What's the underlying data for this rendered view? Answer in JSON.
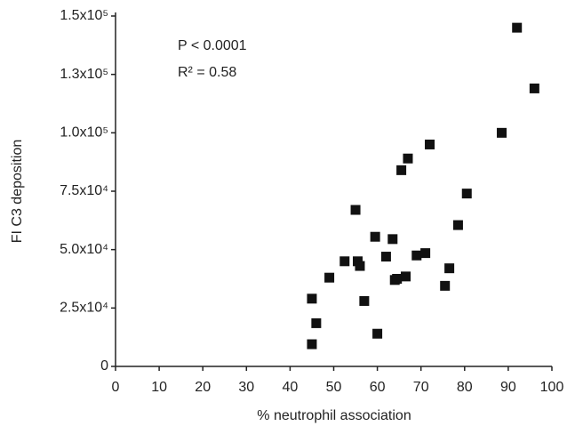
{
  "chart_data": {
    "type": "scatter",
    "x_label": "% neutrophil association",
    "y_label": "FI C3 deposition",
    "annotations": [
      "P < 0.0001",
      "R² = 0.58"
    ],
    "color": "#111111",
    "x": [
      45,
      45,
      46,
      49,
      52.5,
      55.5,
      56,
      55,
      57,
      59.5,
      60,
      62,
      63.5,
      64,
      64.5,
      66.5,
      65.5,
      67,
      69,
      71,
      72,
      75.5,
      76.5,
      78.5,
      80.5,
      88.5,
      92,
      96
    ],
    "values": [
      9500,
      29000,
      18500,
      38000,
      45000,
      45000,
      43000,
      67000,
      28000,
      55500,
      14000,
      47000,
      54500,
      37000,
      37500,
      38500,
      84000,
      89000,
      47500,
      48500,
      95000,
      34500,
      42000,
      60500,
      74000,
      100000,
      145000,
      119000
    ],
    "xlim": [
      0,
      100
    ],
    "xticks": [
      0,
      10,
      20,
      30,
      40,
      50,
      60,
      70,
      80,
      90,
      100
    ],
    "ylim": [
      0,
      150000
    ],
    "yticks": [
      0,
      {
        "value": 25000,
        "label": "2.5x10⁴"
      },
      {
        "value": 50000,
        "label": "5.0x10⁴"
      },
      {
        "value": 75000,
        "label": "7.5x10⁴"
      },
      {
        "value": 100000,
        "label": "1.0x10⁵"
      },
      {
        "value": 125000,
        "label": "1.3x10⁵"
      },
      {
        "value": 150000,
        "label": "1.5x10⁵"
      }
    ]
  }
}
